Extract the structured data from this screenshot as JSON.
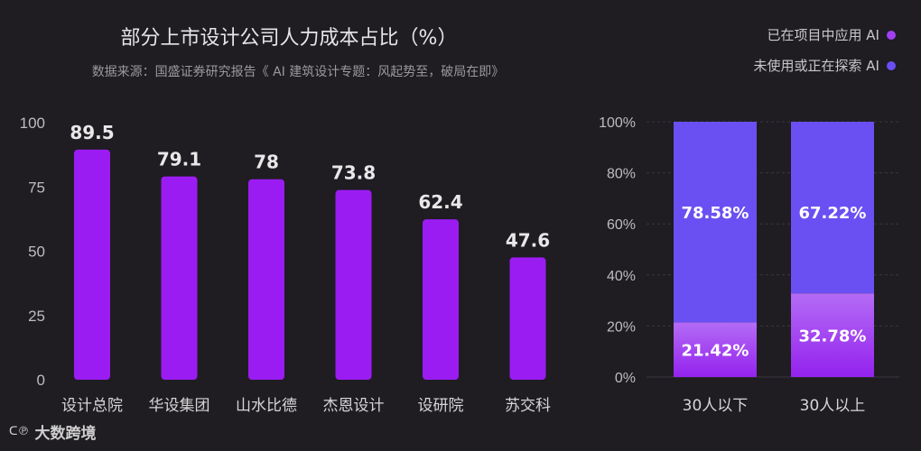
{
  "title": "部分上市设计公司人力成本占比（%）",
  "subtitle": "数据来源：国盛证券研究报告《 AI 建筑设计专题：风起势至，破局在即》",
  "legend": {
    "applied": "已在项目中应用 AI",
    "exploring": "未使用或正在探索 AI"
  },
  "colors": {
    "bar": "#9b1cf2",
    "applied": "#a23ff3",
    "exploring": "#6a50f2",
    "axis_text": "#bdbdbd",
    "label": "#e8e8e8"
  },
  "brand": "大数跨境",
  "chart_data": [
    {
      "type": "bar",
      "title": "部分上市设计公司人力成本占比（%）",
      "categories": [
        "设计总院",
        "华设集团",
        "山水比德",
        "杰恩设计",
        "设研院",
        "苏交科"
      ],
      "values": [
        89.5,
        79.1,
        78,
        73.8,
        62.4,
        47.6
      ],
      "data_labels": [
        "89.5",
        "79.1",
        "78",
        "73.8",
        "62.4",
        "47.6"
      ],
      "yticks": [
        "0",
        "25",
        "50",
        "75",
        "100"
      ],
      "ylim": [
        0,
        100
      ],
      "grid": false
    },
    {
      "type": "bar",
      "stacked": true,
      "categories": [
        "30人以下",
        "30人以上"
      ],
      "series": [
        {
          "name": "已在项目中应用 AI",
          "values": [
            21.42,
            32.78
          ],
          "labels": [
            "21.42%",
            "32.78%"
          ]
        },
        {
          "name": "未使用或正在探索 AI",
          "values": [
            78.58,
            67.22
          ],
          "labels": [
            "78.58%",
            "67.22%"
          ]
        }
      ],
      "yticks": [
        "0%",
        "20%",
        "40%",
        "60%",
        "80%",
        "100%"
      ],
      "ylim": [
        0,
        100
      ],
      "grid": true,
      "legend_position": "top-right"
    }
  ]
}
